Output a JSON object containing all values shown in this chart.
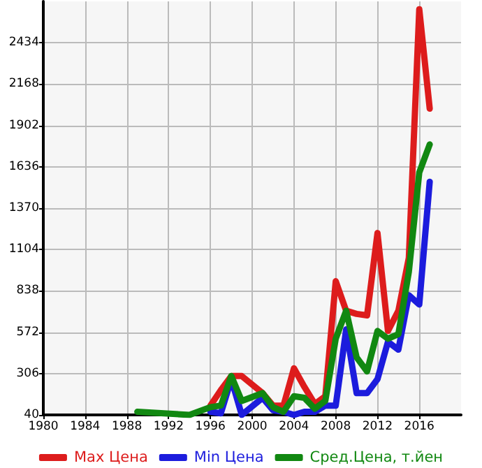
{
  "chart_data": {
    "type": "line",
    "xlim": [
      1980,
      2020
    ],
    "xticks": [
      1980,
      1984,
      1988,
      1992,
      1996,
      2000,
      2004,
      2008,
      2012,
      2016
    ],
    "ylim": [
      40,
      2700
    ],
    "yticks": [
      40,
      306,
      572,
      838,
      1104,
      1370,
      1636,
      1902,
      2168,
      2434
    ],
    "grid": true,
    "legend": "bottom",
    "marker": "none",
    "line_style": "solid",
    "series": [
      {
        "name": "Max Цена",
        "color": "#dd1c1c",
        "x": [
          1996,
          1997,
          1998,
          1999,
          2001,
          2002,
          2003,
          2004,
          2005,
          2006,
          2007,
          2008,
          2009,
          2010,
          2011,
          2012,
          2013,
          2014,
          2015,
          2016,
          2017
        ],
        "values": [
          100,
          200,
          290,
          290,
          180,
          100,
          100,
          340,
          220,
          110,
          160,
          900,
          710,
          690,
          680,
          1210,
          580,
          710,
          1050,
          2650,
          2010
        ]
      },
      {
        "name": "Min Цена",
        "color": "#1c1cdd",
        "x": [
          1996,
          1997,
          1998,
          1999,
          2001,
          2002,
          2003,
          2004,
          2005,
          2006,
          2007,
          2008,
          2009,
          2010,
          2011,
          2012,
          2013,
          2014,
          2015,
          2016,
          2017
        ],
        "values": [
          60,
          50,
          270,
          40,
          150,
          70,
          60,
          40,
          60,
          60,
          100,
          100,
          590,
          180,
          180,
          270,
          510,
          460,
          810,
          750,
          1540
        ]
      },
      {
        "name": "Сред.Цена, т.йен",
        "color": "#118811",
        "x": [
          1989,
          1994,
          1996,
          1997,
          1998,
          1999,
          2001,
          2002,
          2003,
          2004,
          2005,
          2006,
          2007,
          2008,
          2009,
          2010,
          2011,
          2012,
          2013,
          2014,
          2015,
          2016,
          2017
        ],
        "values": [
          60,
          40,
          90,
          100,
          290,
          130,
          180,
          90,
          60,
          160,
          150,
          80,
          130,
          530,
          710,
          410,
          320,
          580,
          530,
          560,
          960,
          1600,
          1780
        ]
      }
    ]
  }
}
